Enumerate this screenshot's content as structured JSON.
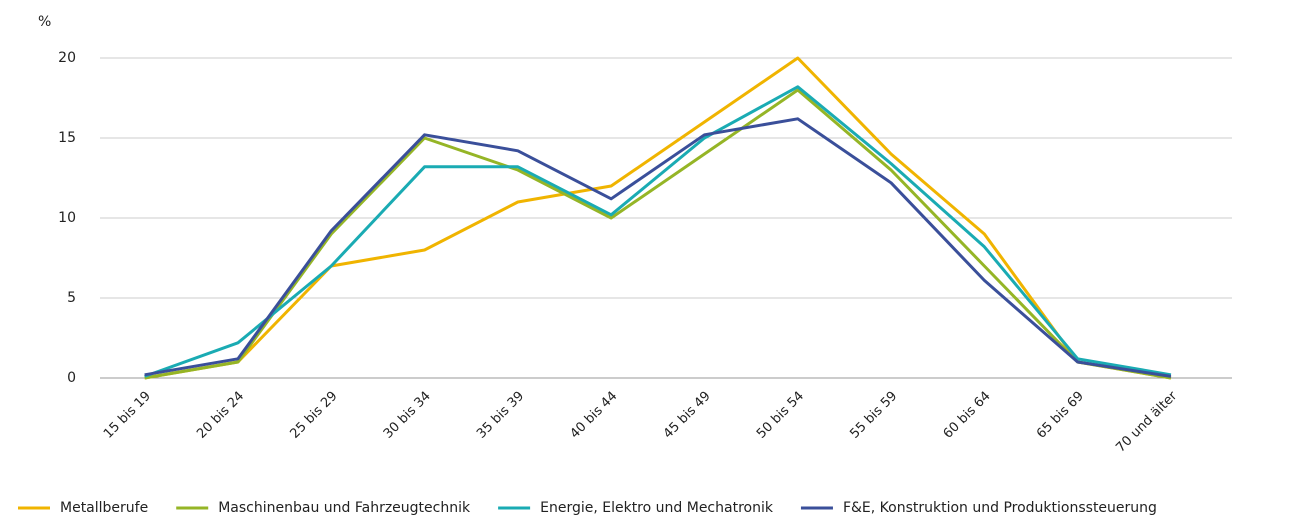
{
  "chart_data": {
    "type": "line",
    "ylabel": "%",
    "categories": [
      "15 bis 19",
      "20 bis 24",
      "25 bis 29",
      "30 bis 34",
      "35 bis 39",
      "40 bis 44",
      "45 bis 49",
      "50 bis 54",
      "55 bis 59",
      "60 bis 64",
      "65 bis 69",
      "70 und älter"
    ],
    "series": [
      {
        "name": "Metallberufe",
        "color": "#f0b400",
        "values": [
          0,
          1,
          7,
          8,
          11,
          12,
          16,
          20,
          14,
          9,
          1,
          0
        ]
      },
      {
        "name": "Maschinenbau und Fahrzeugtechnik",
        "color": "#95b526",
        "values": [
          0,
          1,
          9,
          15,
          13,
          10,
          14,
          18,
          13,
          7,
          1,
          0
        ]
      },
      {
        "name": "Energie, Elektro und Mechatronik",
        "color": "#1aabb3",
        "values": [
          0.1,
          2.2,
          7,
          13.2,
          13.2,
          10.2,
          15,
          18.2,
          13.4,
          8.2,
          1.2,
          0.2
        ]
      },
      {
        "name": "F&E, Konstruktion und Produktionssteuerung",
        "color": "#3a4f9a",
        "values": [
          0.2,
          1.2,
          9.2,
          15.2,
          14.2,
          11.2,
          15.2,
          16.2,
          12.2,
          6.1,
          1,
          0.1
        ]
      }
    ],
    "ylim": [
      0,
      20
    ],
    "yticks": [
      0,
      5,
      10,
      15,
      20
    ],
    "grid": true,
    "legend": "bottom"
  }
}
